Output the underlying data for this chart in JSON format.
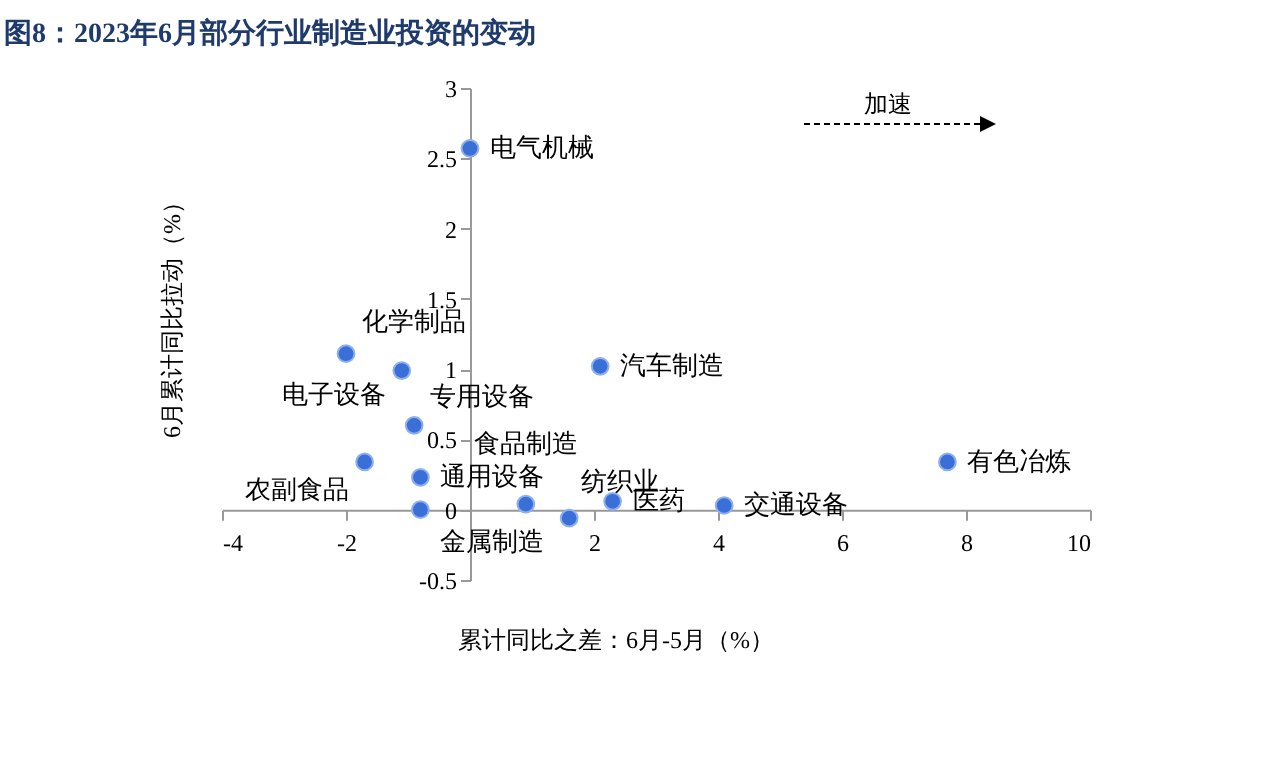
{
  "chart_data": {
    "type": "scatter",
    "title": "图8：2023年6月部分行业制造业投资的变动",
    "xlabel": "累计同比之差：6月-5月（%）",
    "ylabel": "6月累计同比拉动（%）",
    "annotations": [
      "加速"
    ],
    "series": [
      {
        "name": "电气机械",
        "color": "#3a6fd8",
        "x": [
          0
        ],
        "values": [
          2.57
        ]
      },
      {
        "name": "化学制品",
        "color": "#3a6fd8",
        "x": [
          -2.0
        ],
        "values": [
          1.11
        ]
      },
      {
        "name": "电子设备",
        "color": "#3a6fd8",
        "x": [
          -1.1
        ],
        "values": [
          0.99
        ]
      },
      {
        "name": "专用设备",
        "color": "#3a6fd8",
        "x": [
          -0.9
        ],
        "values": [
          0.6
        ]
      },
      {
        "name": "农副食品",
        "color": "#3a6fd8",
        "x": [
          -1.7
        ],
        "values": [
          0.34
        ]
      },
      {
        "name": "通用设备",
        "color": "#3a6fd8",
        "x": [
          -0.8
        ],
        "values": [
          0.23
        ]
      },
      {
        "name": "金属制造",
        "color": "#3a6fd8",
        "x": [
          -0.8
        ],
        "values": [
          0.0
        ]
      },
      {
        "name": "食品制造",
        "color": "#3a6fd8",
        "x": [
          0.9
        ],
        "values": [
          0.04
        ]
      },
      {
        "name": "纺织业",
        "color": "#3a6fd8",
        "x": [
          1.6
        ],
        "values": [
          -0.06
        ]
      },
      {
        "name": "医药",
        "color": "#3a6fd8",
        "x": [
          2.3
        ],
        "values": [
          0.06
        ]
      },
      {
        "name": "汽车制造",
        "color": "#3a6fd8",
        "x": [
          2.1
        ],
        "values": [
          1.02
        ]
      },
      {
        "name": "交通设备",
        "color": "#3a6fd8",
        "x": [
          4.1
        ],
        "values": [
          0.03
        ]
      },
      {
        "name": "有色冶炼",
        "color": "#3a6fd8",
        "x": [
          7.7
        ],
        "values": [
          0.34
        ]
      }
    ],
    "marker": "circle",
    "xlim": [
      -4,
      10
    ],
    "xticks": [
      -4,
      -2,
      {
        "value": 0,
        "label": null
      },
      2,
      4,
      6,
      8,
      10
    ],
    "ylim": [
      -0.5,
      3
    ],
    "yticks": [
      -0.5,
      0,
      0.5,
      1,
      1.5,
      2,
      2.5,
      3
    ]
  }
}
